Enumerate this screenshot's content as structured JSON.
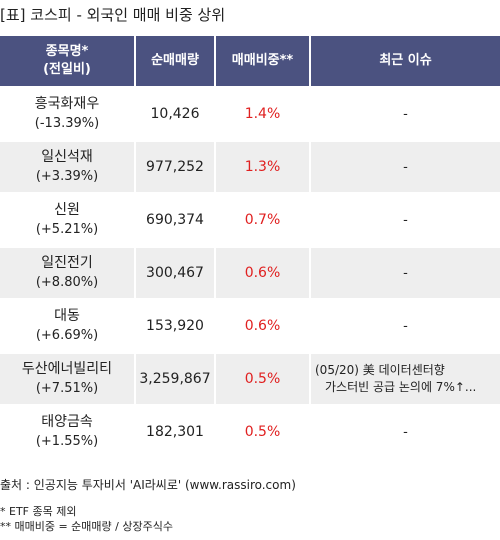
{
  "title": "[표] 코스피 - 외국인 매매 비중 상위",
  "headers": {
    "name_line1": "종목명*",
    "name_line2": "(전일비)",
    "net_volume": "순매매량",
    "trade_ratio": "매매비중**",
    "recent_issue": "최근 이슈"
  },
  "rows": [
    {
      "name": "흥국화재우",
      "change": "(-13.39%)",
      "net_volume": "10,426",
      "trade_ratio": "1.4%",
      "issue_line1": "-",
      "issue_line2": ""
    },
    {
      "name": "일신석재",
      "change": "(+3.39%)",
      "net_volume": "977,252",
      "trade_ratio": "1.3%",
      "issue_line1": "-",
      "issue_line2": ""
    },
    {
      "name": "신원",
      "change": "(+5.21%)",
      "net_volume": "690,374",
      "trade_ratio": "0.7%",
      "issue_line1": "-",
      "issue_line2": ""
    },
    {
      "name": "일진전기",
      "change": "(+8.80%)",
      "net_volume": "300,467",
      "trade_ratio": "0.6%",
      "issue_line1": "-",
      "issue_line2": ""
    },
    {
      "name": "대동",
      "change": "(+6.69%)",
      "net_volume": "153,920",
      "trade_ratio": "0.6%",
      "issue_line1": "-",
      "issue_line2": ""
    },
    {
      "name": "두산에너빌리티",
      "change": "(+7.51%)",
      "net_volume": "3,259,867",
      "trade_ratio": "0.5%",
      "issue_line1": "(05/20) 美 데이터센터향",
      "issue_line2": "가스터빈 공급 논의에 7%↑..."
    },
    {
      "name": "태양금속",
      "change": "(+1.55%)",
      "net_volume": "182,301",
      "trade_ratio": "0.5%",
      "issue_line1": "-",
      "issue_line2": ""
    }
  ],
  "source": "출처 : 인공지능 투자비서 'AI라씨로' (www.rassiro.com)",
  "notes": {
    "note1": "* ETF 종목 제외",
    "note2": "** 매매비중 = 순매매량 / 상장주식수"
  },
  "colors": {
    "header_bg": "#4b5280",
    "ratio_text": "#e02020",
    "stripe_bg": "#eeeeee"
  }
}
